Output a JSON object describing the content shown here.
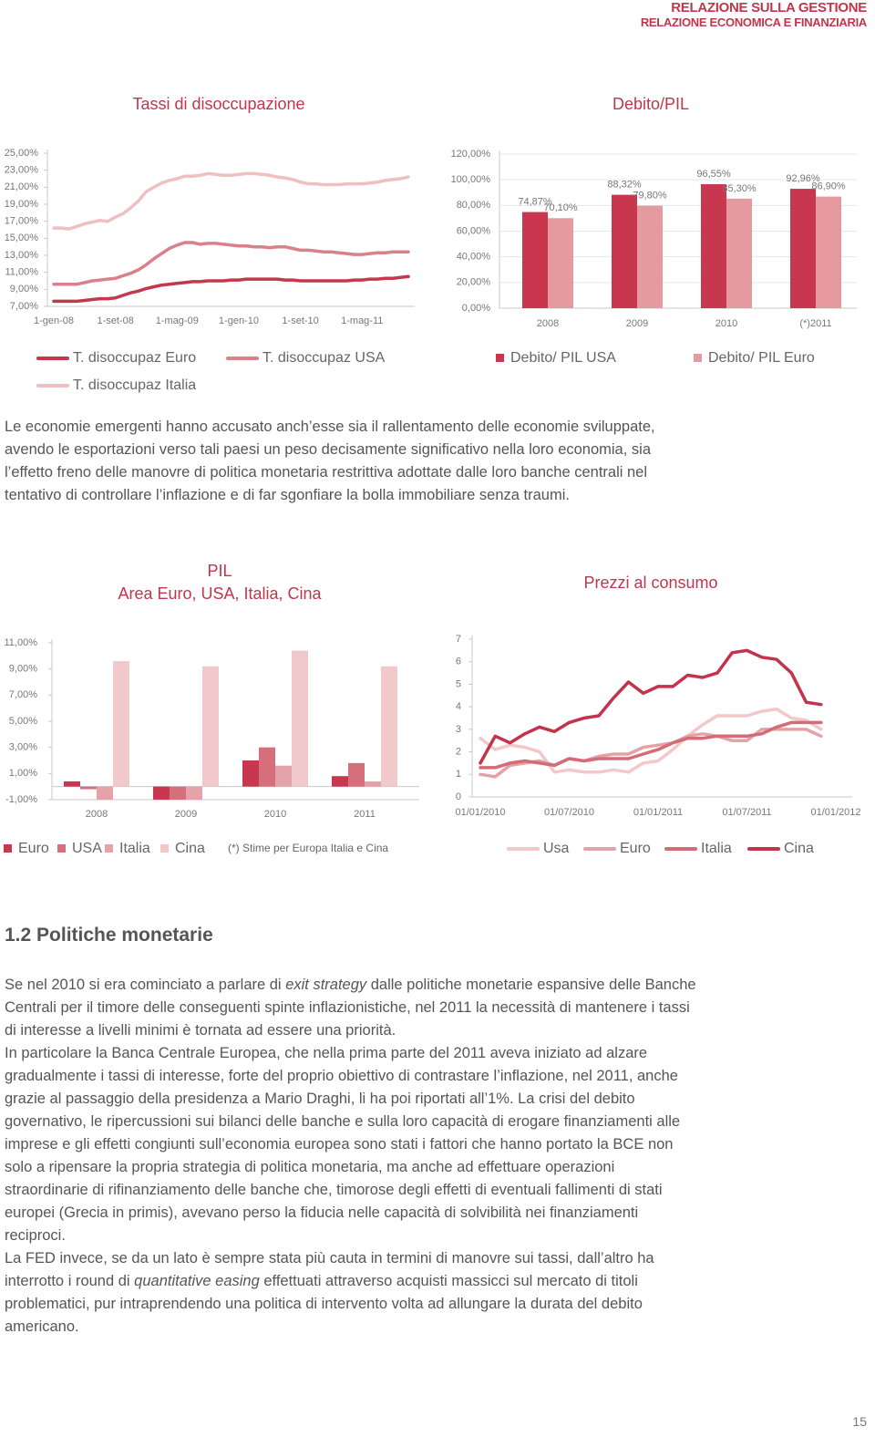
{
  "header": {
    "line1": "RELAZIONE SULLA GESTIONE",
    "line2": "RELAZIONE ECONOMICA E FINANZIARIA"
  },
  "chart_data": [
    {
      "type": "line",
      "title": "Tassi di disoccupazione",
      "categories": [
        "1-gen-08",
        null,
        null,
        null,
        null,
        null,
        null,
        null,
        "1-set-08",
        null,
        null,
        null,
        null,
        null,
        null,
        null,
        "1-mag-09",
        null,
        null,
        null,
        null,
        null,
        null,
        null,
        "1-gen-10",
        null,
        null,
        null,
        null,
        null,
        null,
        null,
        "1-set-10",
        null,
        null,
        null,
        null,
        null,
        null,
        null,
        "1-mag-11",
        null,
        null,
        null,
        null,
        null,
        null
      ],
      "series": [
        {
          "name": "T. disoccupaz Euro",
          "color": "#c4384e",
          "values": [
            7.6,
            7.6,
            7.6,
            7.6,
            7.7,
            7.8,
            7.9,
            7.9,
            8.0,
            8.3,
            8.6,
            8.8,
            9.1,
            9.3,
            9.5,
            9.6,
            9.7,
            9.8,
            9.9,
            9.9,
            10.0,
            10.0,
            10.0,
            10.1,
            10.1,
            10.2,
            10.2,
            10.2,
            10.2,
            10.2,
            10.1,
            10.1,
            10.0,
            10.0,
            10.0,
            10.0,
            10.0,
            10.0,
            10.0,
            10.1,
            10.1,
            10.2,
            10.2,
            10.3,
            10.3,
            10.4,
            10.5
          ]
        },
        {
          "name": "T. disoccupaz USA",
          "color": "#d98089",
          "values": [
            9.6,
            9.6,
            9.6,
            9.6,
            9.8,
            10.0,
            10.1,
            10.2,
            10.3,
            10.6,
            10.9,
            11.3,
            11.9,
            12.6,
            13.2,
            13.8,
            14.2,
            14.5,
            14.5,
            14.3,
            14.4,
            14.4,
            14.3,
            14.2,
            14.1,
            14.1,
            14.0,
            14.0,
            13.9,
            14.0,
            14.0,
            13.8,
            13.6,
            13.6,
            13.5,
            13.4,
            13.4,
            13.3,
            13.2,
            13.1,
            13.1,
            13.2,
            13.3,
            13.3,
            13.4,
            13.4,
            13.4
          ]
        },
        {
          "name": "T. disoccupaz Italia",
          "color": "#efbfc2",
          "values": [
            16.2,
            16.2,
            16.1,
            16.4,
            16.7,
            16.9,
            17.1,
            17.0,
            17.5,
            17.9,
            18.6,
            19.4,
            20.5,
            21.0,
            21.5,
            21.8,
            22.0,
            22.3,
            22.3,
            22.4,
            22.6,
            22.5,
            22.4,
            22.4,
            22.5,
            22.6,
            22.6,
            22.5,
            22.4,
            22.2,
            22.1,
            21.9,
            21.6,
            21.4,
            21.4,
            21.3,
            21.3,
            21.3,
            21.4,
            21.4,
            21.4,
            21.5,
            21.6,
            21.8,
            21.9,
            22.0,
            22.2
          ]
        }
      ],
      "ylim": [
        7,
        25
      ],
      "yticks": [
        {
          "value": 7,
          "label": "7,00%"
        },
        {
          "value": 9,
          "label": "9,00%"
        },
        {
          "value": 11,
          "label": "11,00%"
        },
        {
          "value": 13,
          "label": "13,00%"
        },
        {
          "value": 15,
          "label": "15,00%"
        },
        {
          "value": 17,
          "label": "17,00%"
        },
        {
          "value": 19,
          "label": "19,00%"
        },
        {
          "value": 21,
          "label": "21,00%"
        },
        {
          "value": 23,
          "label": "23,00%"
        },
        {
          "value": 25,
          "label": "25,00%"
        }
      ],
      "grid": false
    },
    {
      "type": "bar",
      "title": "Debito/PIL",
      "categories": [
        "2008",
        "2009",
        "2010",
        "(*)2011"
      ],
      "series": [
        {
          "name": "Debito/ PIL USA",
          "color": "#c8374d",
          "values": [
            74.87,
            88.32,
            96.55,
            92.96
          ],
          "value_labels": [
            "74,87%",
            "88,32%",
            "96,55%",
            "92,96%"
          ]
        },
        {
          "name": "Debito/ PIL Euro",
          "color": "#e59aa0",
          "values": [
            70.1,
            79.8,
            85.3,
            86.9
          ],
          "value_labels": [
            "70,10%",
            "79,80%",
            "85,30%",
            "86,90%"
          ]
        }
      ],
      "ylim": [
        0,
        120
      ],
      "yticks": [
        {
          "value": 0,
          "label": "0,00%"
        },
        {
          "value": 20,
          "label": "20,00%"
        },
        {
          "value": 40,
          "label": "40,00%"
        },
        {
          "value": 60,
          "label": "60,00%"
        },
        {
          "value": 80,
          "label": "80,00%"
        },
        {
          "value": 100,
          "label": "100,00%"
        },
        {
          "value": 120,
          "label": "120,00%"
        }
      ],
      "grid": true
    },
    {
      "type": "bar",
      "title": "PIL",
      "subtitle": "Area Euro, USA, Italia, Cina",
      "note": "(*) Stime per Europa Italia e Cina",
      "categories": [
        "2008",
        "2009",
        "2010",
        "2011"
      ],
      "series": [
        {
          "name": "Euro",
          "color": "#c8374d",
          "values": [
            0.4,
            -1.0,
            2.0,
            0.8
          ]
        },
        {
          "name": "USA",
          "color": "#d5707b",
          "values": [
            -0.2,
            -1.0,
            3.0,
            1.8
          ]
        },
        {
          "name": "Italia",
          "color": "#e4a3a8",
          "values": [
            -1.0,
            -1.0,
            1.6,
            0.4
          ]
        },
        {
          "name": "Cina",
          "color": "#f1c9cb",
          "values": [
            9.6,
            9.2,
            10.4,
            9.2
          ]
        }
      ],
      "ylim": [
        -1,
        11
      ],
      "yticks": [
        {
          "value": -1,
          "label": "-1,00%"
        },
        {
          "value": 1,
          "label": "1,00%"
        },
        {
          "value": 3,
          "label": "3,00%"
        },
        {
          "value": 5,
          "label": "5,00%"
        },
        {
          "value": 7,
          "label": "7,00%"
        },
        {
          "value": 9,
          "label": "9,00%"
        },
        {
          "value": 11,
          "label": "11,00%"
        }
      ],
      "grid": false
    },
    {
      "type": "line",
      "title": "Prezzi al consumo",
      "categories": [
        "01/01/2010",
        null,
        null,
        null,
        null,
        null,
        "01/07/2010",
        null,
        null,
        null,
        null,
        null,
        "01/01/2011",
        null,
        null,
        null,
        null,
        null,
        "01/07/2011",
        null,
        null,
        null,
        null,
        null,
        "01/01/2012"
      ],
      "series": [
        {
          "name": "Usa",
          "color": "#f2c8ca",
          "values": [
            2.6,
            2.1,
            2.3,
            2.2,
            2.0,
            1.1,
            1.2,
            1.1,
            1.1,
            1.2,
            1.1,
            1.5,
            1.6,
            2.1,
            2.7,
            3.2,
            3.6,
            3.6,
            3.6,
            3.8,
            3.9,
            3.5,
            3.4,
            3.0,
            null
          ]
        },
        {
          "name": "Euro",
          "color": "#e3a2a6",
          "values": [
            1.0,
            0.9,
            1.4,
            1.5,
            1.6,
            1.4,
            1.7,
            1.6,
            1.8,
            1.9,
            1.9,
            2.2,
            2.3,
            2.4,
            2.7,
            2.8,
            2.7,
            2.5,
            2.5,
            3.0,
            3.0,
            3.0,
            3.0,
            2.7,
            null
          ]
        },
        {
          "name": "Italia",
          "color": "#d46c77",
          "values": [
            1.3,
            1.3,
            1.5,
            1.6,
            1.5,
            1.4,
            1.7,
            1.6,
            1.7,
            1.7,
            1.7,
            1.9,
            2.1,
            2.4,
            2.6,
            2.6,
            2.7,
            2.7,
            2.7,
            2.8,
            3.1,
            3.3,
            3.3,
            3.3,
            null
          ]
        },
        {
          "name": "Cina",
          "color": "#c3334b",
          "values": [
            1.5,
            2.7,
            2.4,
            2.8,
            3.1,
            2.9,
            3.3,
            3.5,
            3.6,
            4.4,
            5.1,
            4.6,
            4.9,
            4.9,
            5.4,
            5.3,
            5.5,
            6.4,
            6.5,
            6.2,
            6.1,
            5.5,
            4.2,
            4.1,
            null
          ]
        }
      ],
      "ylim": [
        0,
        7
      ],
      "yticks": [
        0,
        1,
        2,
        3,
        4,
        5,
        6,
        7
      ],
      "grid": false
    }
  ],
  "intro": "Le economie emergenti hanno accusato anch’esse sia il rallentamento delle economie sviluppate, avendo le esportazioni verso tali paesi un peso decisamente significativo nella loro economia, sia l’effetto freno delle manovre di politica monetaria restrittiva adottate dalle loro banche centrali nel tentativo di controllare l’inflazione e di far sgonfiare la bolla immobiliare senza traumi.",
  "section": {
    "title": "1.2 Politiche monetarie",
    "paragraphs": [
      [
        "Se nel 2010 si era cominciato a parlare di ",
        "exit strategy",
        " dalle politiche monetarie espansive delle Banche Centrali per il timore delle conseguenti spinte inflazionistiche, nel 2011 la necessità di mantenere i tassi di interesse a livelli minimi è tornata ad essere una priorità."
      ],
      [
        "In particolare la Banca Centrale Europea, che nella prima parte del 2011 aveva iniziato ad alzare gradualmente i tassi di interesse, forte del proprio obiettivo di contrastare l’inflazione, nel 2011, anche grazie al passaggio della presidenza a Mario Draghi, li ha poi riportati all’1%. La crisi del debito governativo, le ripercussioni sui bilanci delle banche e sulla loro capacità di erogare finanziamenti alle imprese e gli effetti congiunti sull’economia europea sono stati i fattori che hanno portato la BCE non solo a ripensare la propria strategia di politica monetaria, ma anche ad effettuare operazioni straordinarie di rifinanziamento delle banche che, timorose degli effetti di eventuali fallimenti di stati europei (Grecia in primis), avevano perso la fiducia nelle capacità di solvibilità nei finanziamenti reciproci."
      ],
      [
        "La FED invece, se da un lato è sempre stata più cauta in termini di manovre sui tassi, dall’altro ha interrotto i round di ",
        "quantitative easing",
        " effettuati attraverso acquisti massicci sul mercato di titoli problematici, pur intraprendendo una politica di intervento volta ad allungare la durata del debito americano."
      ]
    ]
  },
  "page_number": "15"
}
